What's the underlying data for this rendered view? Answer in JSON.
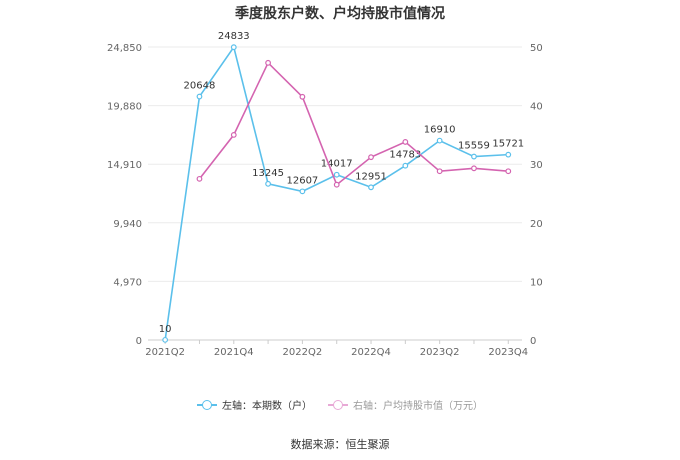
{
  "chart_data": {
    "type": "line",
    "title": "季度股东户数、户均持股市值情况",
    "categories": [
      "2021Q2",
      "2021Q3",
      "2021Q4",
      "2022Q1",
      "2022Q2",
      "2022Q3",
      "2022Q4",
      "2023Q1",
      "2023Q2",
      "2023Q3",
      "2023Q4"
    ],
    "x_tick_labels": [
      "2021Q2",
      "2021Q4",
      "2022Q2",
      "2022Q4",
      "2023Q2",
      "2023Q4"
    ],
    "left_axis": {
      "ylim": [
        0,
        24850
      ],
      "ticks": [
        "0",
        "4,970",
        "9,940",
        "14,910",
        "19,880",
        "24,850"
      ]
    },
    "right_axis": {
      "ylim": [
        0,
        50
      ],
      "ticks": [
        "0",
        "10",
        "20",
        "30",
        "40",
        "50"
      ]
    },
    "series": [
      {
        "name": "左轴：本期数（户）",
        "axis": "left",
        "color": "#5bc0eb",
        "values": [
          10,
          20648,
          24833,
          13245,
          12607,
          14017,
          12951,
          14783,
          16910,
          15559,
          15721
        ],
        "labels": [
          "10",
          "20648",
          "24833",
          "13245",
          "12607",
          "14017",
          "12951",
          "14783",
          "16910",
          "15559",
          "15721"
        ]
      },
      {
        "name": "右轴：户均持股市值（万元）",
        "axis": "right",
        "color": "#d464b0",
        "values": [
          null,
          27.5,
          35.0,
          47.3,
          41.5,
          26.5,
          31.2,
          33.8,
          28.8,
          29.3,
          28.8
        ]
      }
    ],
    "grid": true,
    "legend_position": "bottom"
  },
  "source": "数据来源：恒生聚源"
}
